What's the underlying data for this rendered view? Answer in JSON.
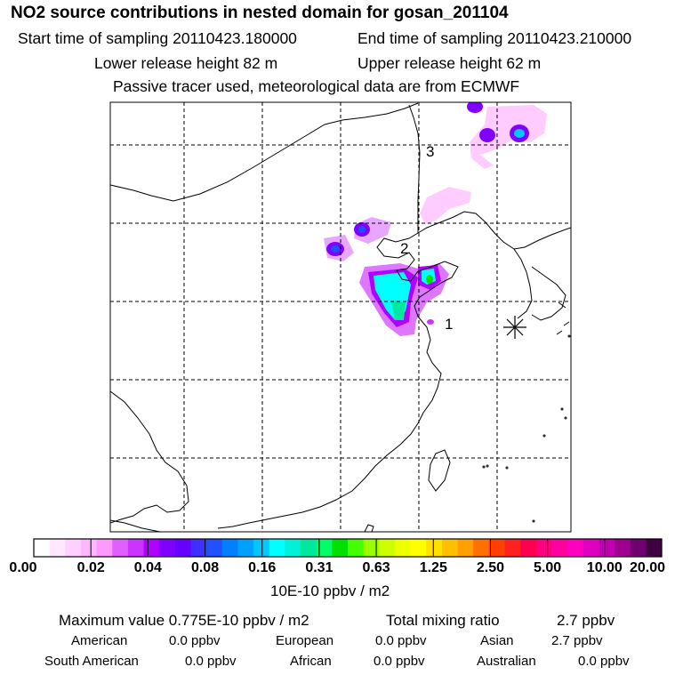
{
  "header": {
    "title": "NO2 source contributions in nested domain for gosan_201104",
    "start_label": "Start time of sampling 20110423.180000",
    "end_label": "End time of sampling 20110423.210000",
    "lower_label": "Lower release height   82 m",
    "upper_label": "Upper release height   62 m",
    "tracer_note": "Passive tracer used, meteorological data are from ECMWF"
  },
  "map": {
    "markers": [
      "1",
      "2",
      "3"
    ],
    "receptor_symbol": "asterisk-icon"
  },
  "colorbar": {
    "ticks": [
      "0.00",
      "0.02",
      "0.04",
      "0.08",
      "0.16",
      "0.31",
      "0.63",
      "1.25",
      "2.50",
      "5.00",
      "10.00",
      "20.00"
    ],
    "unit": "10E-10 ppbv / m2",
    "colors": [
      "#ffffff",
      "#ffe8ff",
      "#ffd0ff",
      "#ffb6ff",
      "#ff99ff",
      "#e060ff",
      "#cc33ff",
      "#b000ff",
      "#8000ff",
      "#6600ff",
      "#4030ff",
      "#2050ff",
      "#0080ff",
      "#00a0ff",
      "#00c8ff",
      "#00ffff",
      "#00f0d8",
      "#00e8a0",
      "#00ff66",
      "#00e000",
      "#44ff00",
      "#99ff00",
      "#ccff00",
      "#eeff00",
      "#ffff00",
      "#ffe000",
      "#ffc000",
      "#ffa000",
      "#ff7000",
      "#ff4000",
      "#ff2020",
      "#ff0050",
      "#ff0080",
      "#ff00a0",
      "#ff00c0",
      "#e000c0",
      "#c000b0",
      "#a00090",
      "#700070",
      "#400040"
    ]
  },
  "summary": {
    "max_label": "Maximum value  0.775E-10 ppbv / m2",
    "total_label": "Total mixing ratio",
    "total_value": "2.7 ppbv",
    "american_label": "American",
    "american_value": "0.0 ppbv",
    "european_label": "European",
    "european_value": "0.0 ppbv",
    "asian_label": "Asian",
    "asian_value": "2.7 ppbv",
    "south_american_label": "South American",
    "south_american_value": "0.0 ppbv",
    "african_label": "African",
    "african_value": "0.0 ppbv",
    "australian_label": "Australian",
    "australian_value": "0.0 ppbv"
  }
}
